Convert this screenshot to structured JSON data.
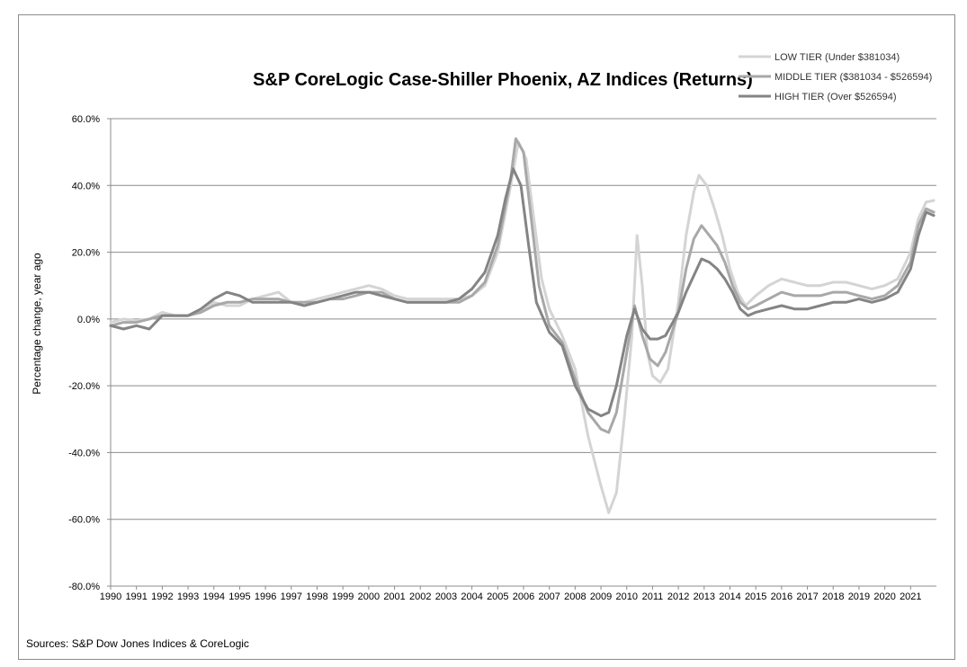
{
  "chart_data": {
    "type": "line",
    "title": "S&P CoreLogic Case-Shiller Phoenix, AZ Indices (Returns)",
    "xlabel": "",
    "ylabel": "Percentage change, year ago",
    "source": "Sources: S&P Dow Jones Indices & CoreLogic",
    "ylim": [
      -80,
      60
    ],
    "xlim": [
      1990,
      2022
    ],
    "y_ticks": [
      "60.0%",
      "40.0%",
      "20.0%",
      "0.0%",
      "-20.0%",
      "-40.0%",
      "-60.0%",
      "-80.0%"
    ],
    "x_ticks": [
      "1990",
      "1991",
      "1992",
      "1993",
      "1994",
      "1995",
      "1996",
      "1997",
      "1998",
      "1999",
      "2000",
      "2001",
      "2002",
      "2003",
      "2004",
      "2005",
      "2006",
      "2007",
      "2008",
      "2009",
      "2010",
      "2011",
      "2012",
      "2013",
      "2014",
      "2015",
      "2016",
      "2017",
      "2018",
      "2019",
      "2020",
      "2021"
    ],
    "grid": "horizontal",
    "legend_position": "top-right",
    "series": [
      {
        "name": "LOW TIER (Under $381034)",
        "color": "#d4d4d4",
        "points": [
          [
            1990,
            -1
          ],
          [
            1990.5,
            0
          ],
          [
            1991,
            -0.5
          ],
          [
            1991.5,
            0
          ],
          [
            1992,
            2
          ],
          [
            1992.5,
            1
          ],
          [
            1993,
            1
          ],
          [
            1993.5,
            2
          ],
          [
            1994,
            5
          ],
          [
            1994.5,
            4
          ],
          [
            1995,
            4
          ],
          [
            1995.5,
            6
          ],
          [
            1996,
            7
          ],
          [
            1996.5,
            8
          ],
          [
            1997,
            5
          ],
          [
            1997.5,
            5
          ],
          [
            1998,
            6
          ],
          [
            1998.5,
            7
          ],
          [
            1999,
            8
          ],
          [
            1999.5,
            9
          ],
          [
            2000,
            10
          ],
          [
            2000.5,
            9
          ],
          [
            2001,
            7
          ],
          [
            2001.5,
            6
          ],
          [
            2002,
            6
          ],
          [
            2002.5,
            6
          ],
          [
            2003,
            6
          ],
          [
            2003.5,
            6
          ],
          [
            2004,
            7
          ],
          [
            2004.5,
            10
          ],
          [
            2005,
            20
          ],
          [
            2005.5,
            40
          ],
          [
            2005.8,
            53
          ],
          [
            2006.1,
            48
          ],
          [
            2006.4,
            30
          ],
          [
            2006.7,
            12
          ],
          [
            2007,
            3
          ],
          [
            2007.5,
            -5
          ],
          [
            2008,
            -15
          ],
          [
            2008.5,
            -35
          ],
          [
            2009,
            -50
          ],
          [
            2009.3,
            -58
          ],
          [
            2009.6,
            -52
          ],
          [
            2009.9,
            -30
          ],
          [
            2010.2,
            -5
          ],
          [
            2010.4,
            25
          ],
          [
            2010.6,
            10
          ],
          [
            2010.8,
            -10
          ],
          [
            2011,
            -17
          ],
          [
            2011.3,
            -19
          ],
          [
            2011.6,
            -15
          ],
          [
            2012,
            5
          ],
          [
            2012.3,
            25
          ],
          [
            2012.6,
            38
          ],
          [
            2012.8,
            43
          ],
          [
            2013.1,
            40
          ],
          [
            2013.4,
            33
          ],
          [
            2013.7,
            25
          ],
          [
            2014,
            15
          ],
          [
            2014.3,
            8
          ],
          [
            2014.6,
            4
          ],
          [
            2015,
            7
          ],
          [
            2015.5,
            10
          ],
          [
            2016,
            12
          ],
          [
            2016.5,
            11
          ],
          [
            2017,
            10
          ],
          [
            2017.5,
            10
          ],
          [
            2018,
            11
          ],
          [
            2018.5,
            11
          ],
          [
            2019,
            10
          ],
          [
            2019.5,
            9
          ],
          [
            2020,
            10
          ],
          [
            2020.5,
            12
          ],
          [
            2021,
            20
          ],
          [
            2021.3,
            30
          ],
          [
            2021.6,
            35
          ],
          [
            2021.9,
            35.5
          ]
        ]
      },
      {
        "name": "MIDDLE TIER ($381034 - $526594)",
        "color": "#a8a8a8",
        "points": [
          [
            1990,
            -2
          ],
          [
            1990.5,
            -1
          ],
          [
            1991,
            -1
          ],
          [
            1991.5,
            0
          ],
          [
            1992,
            1
          ],
          [
            1992.5,
            1
          ],
          [
            1993,
            1
          ],
          [
            1993.5,
            2
          ],
          [
            1994,
            4
          ],
          [
            1994.5,
            5
          ],
          [
            1995,
            5
          ],
          [
            1995.5,
            6
          ],
          [
            1996,
            6
          ],
          [
            1996.5,
            6
          ],
          [
            1997,
            5
          ],
          [
            1997.5,
            5
          ],
          [
            1998,
            5
          ],
          [
            1998.5,
            6
          ],
          [
            1999,
            6
          ],
          [
            1999.5,
            7
          ],
          [
            2000,
            8
          ],
          [
            2000.5,
            8
          ],
          [
            2001,
            6
          ],
          [
            2001.5,
            5
          ],
          [
            2002,
            5
          ],
          [
            2002.5,
            5
          ],
          [
            2003,
            5
          ],
          [
            2003.5,
            5
          ],
          [
            2004,
            7
          ],
          [
            2004.5,
            11
          ],
          [
            2005,
            22
          ],
          [
            2005.5,
            42
          ],
          [
            2005.7,
            54
          ],
          [
            2006,
            50
          ],
          [
            2006.3,
            30
          ],
          [
            2006.6,
            10
          ],
          [
            2007,
            -2
          ],
          [
            2007.5,
            -7
          ],
          [
            2008,
            -18
          ],
          [
            2008.5,
            -28
          ],
          [
            2009,
            -33
          ],
          [
            2009.3,
            -34
          ],
          [
            2009.6,
            -28
          ],
          [
            2010,
            -10
          ],
          [
            2010.3,
            4
          ],
          [
            2010.6,
            -5
          ],
          [
            2010.9,
            -12
          ],
          [
            2011.2,
            -14
          ],
          [
            2011.5,
            -10
          ],
          [
            2012,
            2
          ],
          [
            2012.3,
            15
          ],
          [
            2012.6,
            24
          ],
          [
            2012.9,
            28
          ],
          [
            2013.2,
            25
          ],
          [
            2013.5,
            22
          ],
          [
            2013.8,
            17
          ],
          [
            2014.1,
            10
          ],
          [
            2014.4,
            5
          ],
          [
            2014.7,
            3
          ],
          [
            2015,
            4
          ],
          [
            2015.5,
            6
          ],
          [
            2016,
            8
          ],
          [
            2016.5,
            7
          ],
          [
            2017,
            7
          ],
          [
            2017.5,
            7
          ],
          [
            2018,
            8
          ],
          [
            2018.5,
            8
          ],
          [
            2019,
            7
          ],
          [
            2019.5,
            6
          ],
          [
            2020,
            7
          ],
          [
            2020.5,
            10
          ],
          [
            2021,
            17
          ],
          [
            2021.3,
            28
          ],
          [
            2021.6,
            33
          ],
          [
            2021.9,
            32
          ]
        ]
      },
      {
        "name": "HIGH TIER (Over $526594)",
        "color": "#848484",
        "points": [
          [
            1990,
            -2
          ],
          [
            1990.5,
            -3
          ],
          [
            1991,
            -2
          ],
          [
            1991.5,
            -3
          ],
          [
            1992,
            1
          ],
          [
            1992.5,
            1
          ],
          [
            1993,
            1
          ],
          [
            1993.5,
            3
          ],
          [
            1994,
            6
          ],
          [
            1994.5,
            8
          ],
          [
            1995,
            7
          ],
          [
            1995.5,
            5
          ],
          [
            1996,
            5
          ],
          [
            1996.5,
            5
          ],
          [
            1997,
            5
          ],
          [
            1997.5,
            4
          ],
          [
            1998,
            5
          ],
          [
            1998.5,
            6
          ],
          [
            1999,
            7
          ],
          [
            1999.5,
            8
          ],
          [
            2000,
            8
          ],
          [
            2000.5,
            7
          ],
          [
            2001,
            6
          ],
          [
            2001.5,
            5
          ],
          [
            2002,
            5
          ],
          [
            2002.5,
            5
          ],
          [
            2003,
            5
          ],
          [
            2003.5,
            6
          ],
          [
            2004,
            9
          ],
          [
            2004.5,
            14
          ],
          [
            2005,
            25
          ],
          [
            2005.3,
            36
          ],
          [
            2005.6,
            45
          ],
          [
            2005.9,
            40
          ],
          [
            2006.2,
            22
          ],
          [
            2006.5,
            5
          ],
          [
            2007,
            -4
          ],
          [
            2007.5,
            -8
          ],
          [
            2008,
            -20
          ],
          [
            2008.5,
            -27
          ],
          [
            2009,
            -29
          ],
          [
            2009.3,
            -28
          ],
          [
            2009.6,
            -20
          ],
          [
            2010,
            -5
          ],
          [
            2010.3,
            3
          ],
          [
            2010.6,
            -3
          ],
          [
            2010.9,
            -6
          ],
          [
            2011.2,
            -6
          ],
          [
            2011.5,
            -5
          ],
          [
            2012,
            2
          ],
          [
            2012.3,
            8
          ],
          [
            2012.6,
            13
          ],
          [
            2012.9,
            18
          ],
          [
            2013.2,
            17
          ],
          [
            2013.5,
            15
          ],
          [
            2013.8,
            12
          ],
          [
            2014.1,
            8
          ],
          [
            2014.4,
            3
          ],
          [
            2014.7,
            1
          ],
          [
            2015,
            2
          ],
          [
            2015.5,
            3
          ],
          [
            2016,
            4
          ],
          [
            2016.5,
            3
          ],
          [
            2017,
            3
          ],
          [
            2017.5,
            4
          ],
          [
            2018,
            5
          ],
          [
            2018.5,
            5
          ],
          [
            2019,
            6
          ],
          [
            2019.5,
            5
          ],
          [
            2020,
            6
          ],
          [
            2020.5,
            8
          ],
          [
            2021,
            15
          ],
          [
            2021.3,
            25
          ],
          [
            2021.6,
            32
          ],
          [
            2021.9,
            31
          ]
        ]
      }
    ]
  }
}
